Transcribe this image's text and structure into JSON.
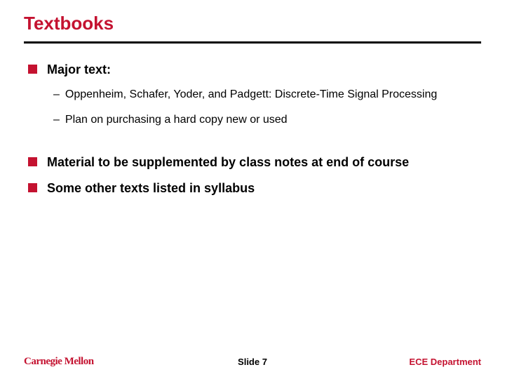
{
  "title": "Textbooks",
  "colors": {
    "accent": "#c41230",
    "text": "#000000",
    "rule": "#000000",
    "background": "#ffffff"
  },
  "bullets": {
    "b0": {
      "text": "Major text:"
    },
    "b0_subs": {
      "s0": "Oppenheim, Schafer, Yoder, and Padgett: Discrete-Time Signal Processing",
      "s1": "Plan on purchasing a hard copy new or used"
    },
    "b1": {
      "text": "Material to be supplemented by class notes at end of course"
    },
    "b2": {
      "text": "Some other texts listed in syllabus"
    }
  },
  "footer": {
    "logo": "Carnegie Mellon",
    "slide": "Slide 7",
    "dept": "ECE Department"
  },
  "typography": {
    "title_fontsize": 26,
    "bullet_fontsize": 18,
    "sub_fontsize": 16,
    "footer_fontsize": 13
  }
}
